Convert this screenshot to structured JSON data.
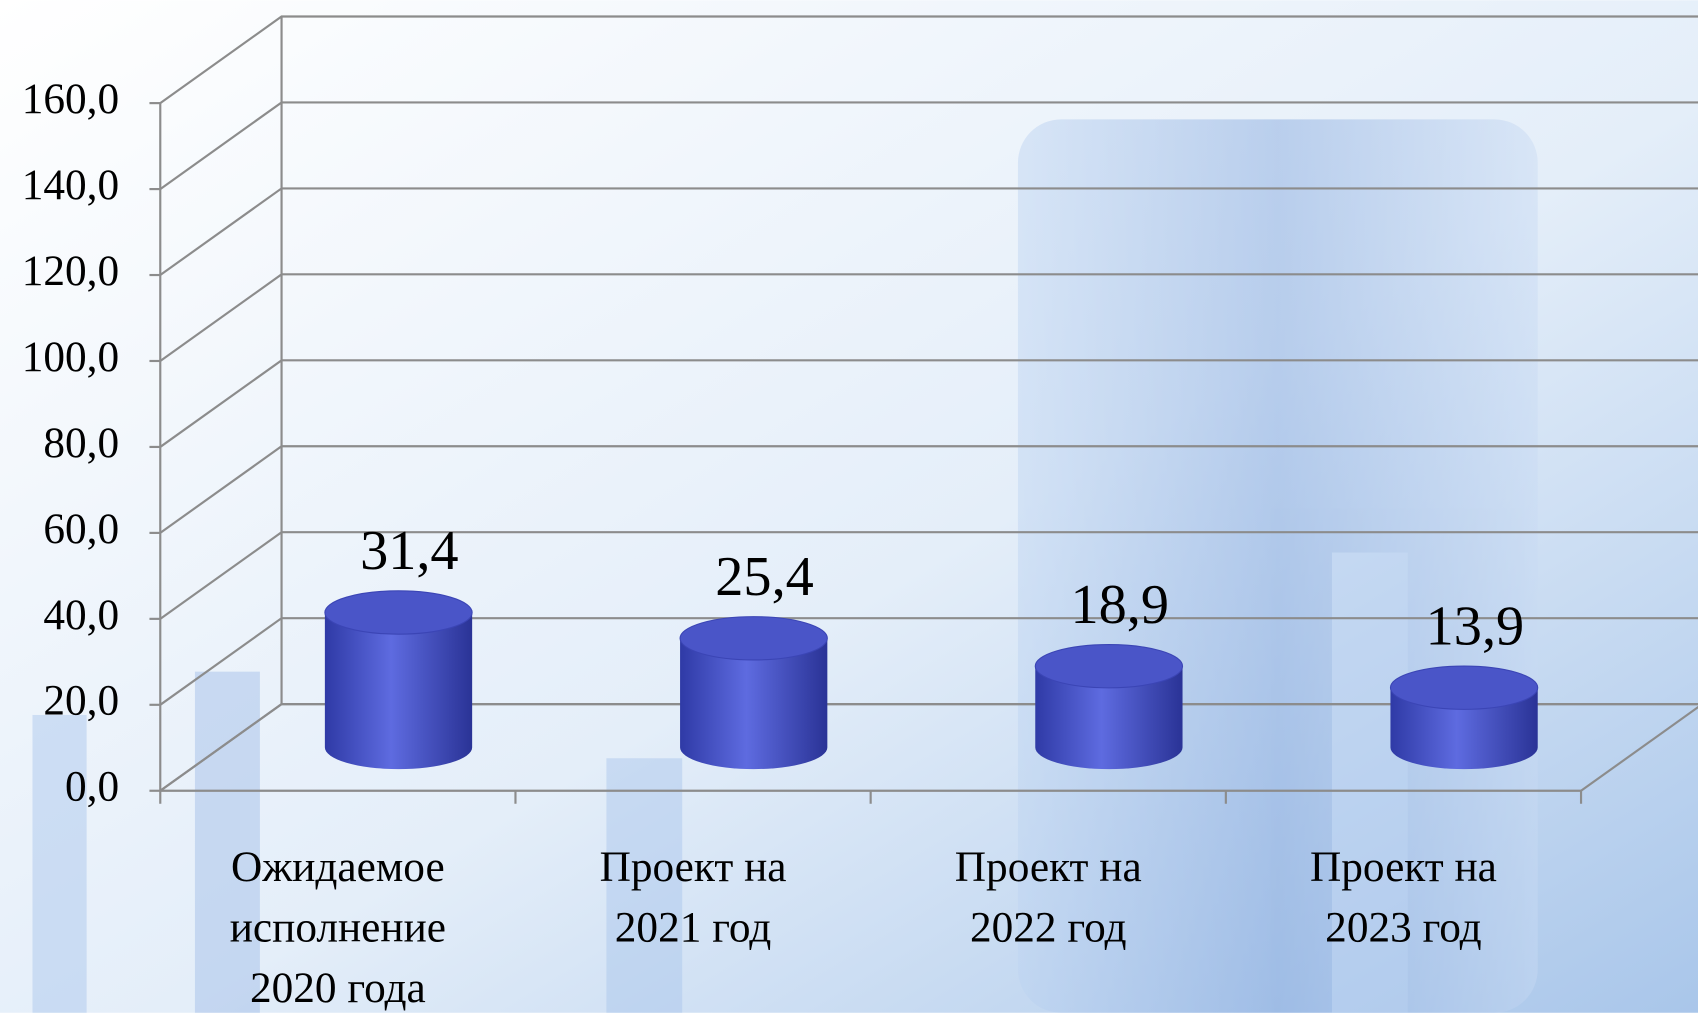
{
  "chart_data": {
    "type": "bar3d-cylinder",
    "categories": [
      [
        "Ожидаемое",
        "исполнение",
        "2020 года"
      ],
      [
        "Проект на",
        "2021 год"
      ],
      [
        "Проект на",
        "2022 год"
      ],
      [
        "Проект на",
        "2023 год"
      ]
    ],
    "values": [
      31.4,
      25.4,
      18.9,
      13.9
    ],
    "value_labels": [
      "31,4",
      "25,4",
      "18,9",
      "13,9"
    ],
    "color": "#4a55c8",
    "ylim": [
      0,
      160
    ],
    "yticks": [
      {
        "value": 0,
        "label": "0,0"
      },
      {
        "value": 20,
        "label": "20,0"
      },
      {
        "value": 40,
        "label": "40,0"
      },
      {
        "value": 60,
        "label": "60,0"
      },
      {
        "value": 80,
        "label": "80,0"
      },
      {
        "value": 100,
        "label": "100,0"
      },
      {
        "value": 120,
        "label": "120,0"
      },
      {
        "value": 140,
        "label": "140,0"
      },
      {
        "value": 160,
        "label": "160,0"
      }
    ],
    "grid": true
  }
}
